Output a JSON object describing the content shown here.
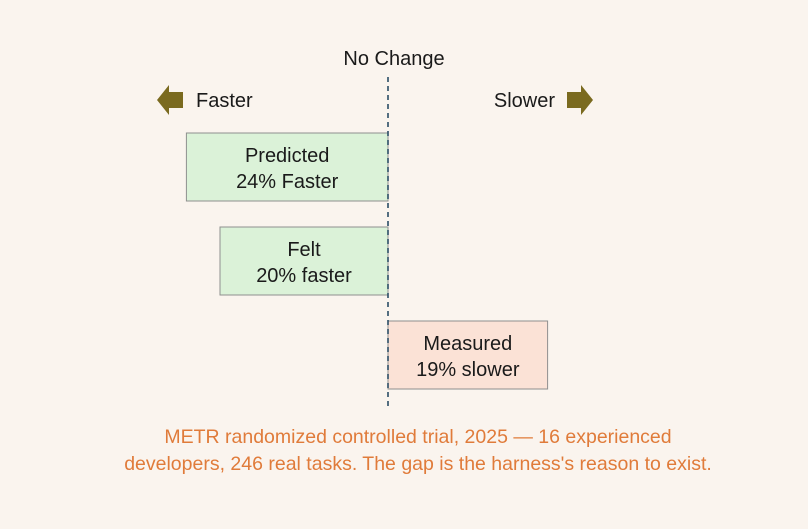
{
  "chart_data": {
    "type": "bar",
    "orientation": "horizontal",
    "center_label": "No Change",
    "direction_labels": {
      "left": "Faster",
      "right": "Slower"
    },
    "unit": "%",
    "series": [
      {
        "name": "Predicted",
        "label": "24% Faster",
        "value": -24,
        "color": "#dbf2d8"
      },
      {
        "name": "Felt",
        "label": "20% faster",
        "value": -20,
        "color": "#dbf2d8"
      },
      {
        "name": "Measured",
        "label": "19% slower",
        "value": 19,
        "color": "#fbe2d6"
      }
    ],
    "arrow_color": "#7a6a1f",
    "baseline_color": "#2a4d66"
  },
  "caption": {
    "line1": "METR randomized controlled trial, 2025 — 16 experienced",
    "line2": "developers, 246 real tasks. The gap is the harness's reason to exist."
  },
  "colors": {
    "background": "#faf4ee",
    "caption": "#e07b3a"
  }
}
